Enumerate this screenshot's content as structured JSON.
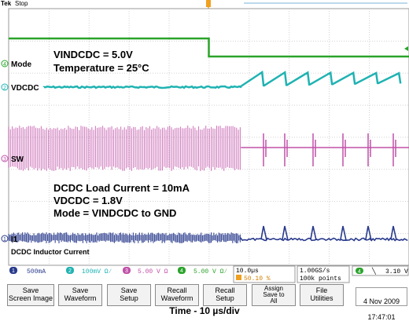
{
  "chart_data": {
    "type": "line",
    "title": "",
    "xlabel": "Time - 10 µs/div",
    "ylabel": "",
    "x_per_div_us": 10,
    "x_divisions": 10,
    "y_divisions": 8,
    "grid": true,
    "series": [
      {
        "name": "Mode",
        "channel": 4,
        "color": "#2aa32a",
        "level_before": "high",
        "level_after": "low",
        "step_div": 5.0
      },
      {
        "name": "VDCDC",
        "channel": 2,
        "color": "#20b2b2",
        "waveform": "steady then sawtooth ramp",
        "ramp_start_div": 5.8
      },
      {
        "name": "SW",
        "channel": 3,
        "color": "#c050a8",
        "waveform": "dense switching then sparse pulses",
        "change_div": 5.8
      },
      {
        "name": "DCDC Inductor Current",
        "channel": 1,
        "color": "#283a8c",
        "waveform": "dense ripple then sparse peaks",
        "change_div": 5.8
      }
    ],
    "annotations": {
      "upper_block": [
        "VINDCDC = 5.0V",
        "Temperature = 25°C"
      ],
      "lower_block": [
        "DCDC Load Current = 10mA",
        "VDCDC = 1.8V",
        "Mode = VINDCDC to GND"
      ]
    }
  },
  "scope": {
    "brand": "Tek",
    "status": "Stop",
    "trace_labels": {
      "mode": "Mode",
      "vdcdc": "VDCDC",
      "sw": "SW",
      "inductor": "DCDC Inductor Current"
    },
    "channel_markers": {
      "ch4": "4",
      "ch2": "2",
      "ch3": "3",
      "ch1": "1"
    },
    "channel_scales": [
      {
        "channel": "1",
        "value": "500mA",
        "color": "#283a8c"
      },
      {
        "channel": "2",
        "value": "100mV Ω⁄",
        "color": "#20b2b2"
      },
      {
        "channel": "3",
        "value": "5.00 V Ω",
        "color": "#c050a8"
      },
      {
        "channel": "4",
        "value": "5.00 V Ω⁄",
        "color": "#2aa32a"
      }
    ],
    "timebase": "10.0µs",
    "trigger_position": "50.10 %",
    "sample_rate": "1.00GS/s",
    "record_length": "100k points",
    "trigger_channel": "4",
    "trigger_slope": "╲",
    "trigger_level": "3.10 V",
    "menu": [
      "Save\nScreen Image",
      "Save\nWaveform",
      "Save\nSetup",
      "Recall\nWaveform",
      "Recall\nSetup",
      "Assign\nSave to\nAll",
      "File\nUtilities"
    ],
    "date": "4 Nov 2009",
    "time": "17:47:01"
  }
}
